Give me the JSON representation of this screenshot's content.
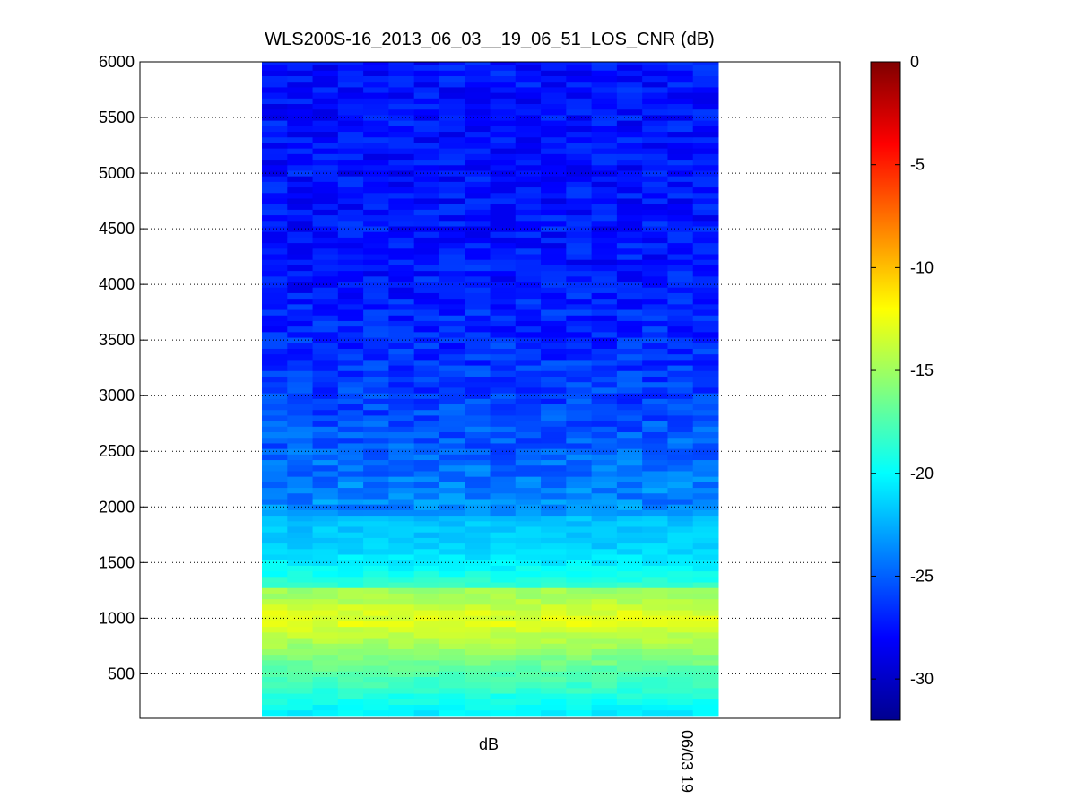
{
  "chart_data": {
    "type": "heatmap",
    "title": "WLS200S-16_2013_06_03__19_06_51_LOS_CNR (dB)",
    "xlabel": "dB",
    "ylabel": "",
    "x_tick_labels": [
      "06/03 19"
    ],
    "yticks": [
      500,
      1000,
      1500,
      2000,
      2500,
      3000,
      3500,
      4000,
      4500,
      5000,
      5500,
      6000
    ],
    "ylim": [
      100,
      6000
    ],
    "grid": true,
    "colormap": "jet",
    "colorbar": {
      "range": [
        -32,
        0
      ],
      "ticks": [
        0,
        -5,
        -10,
        -15,
        -20,
        -25,
        -30
      ]
    },
    "columns": 18,
    "rows_y_range": [
      150,
      6000
    ],
    "row_step": 50,
    "profile": [
      {
        "y": 150,
        "cnr": -20.5
      },
      {
        "y": 250,
        "cnr": -19.5
      },
      {
        "y": 350,
        "cnr": -18.5
      },
      {
        "y": 500,
        "cnr": -17.5
      },
      {
        "y": 650,
        "cnr": -16.0
      },
      {
        "y": 800,
        "cnr": -14.5
      },
      {
        "y": 950,
        "cnr": -13.0
      },
      {
        "y": 1050,
        "cnr": -13.2
      },
      {
        "y": 1150,
        "cnr": -14.3
      },
      {
        "y": 1250,
        "cnr": -15.0
      },
      {
        "y": 1300,
        "cnr": -18.5
      },
      {
        "y": 1450,
        "cnr": -20.0
      },
      {
        "y": 1650,
        "cnr": -21.5
      },
      {
        "y": 1900,
        "cnr": -22.0
      },
      {
        "y": 1950,
        "cnr": -23.5
      },
      {
        "y": 2200,
        "cnr": -24.0
      },
      {
        "y": 2500,
        "cnr": -25.0
      },
      {
        "y": 3000,
        "cnr": -26.0
      },
      {
        "y": 4000,
        "cnr": -27.3
      },
      {
        "y": 5000,
        "cnr": -27.5
      },
      {
        "y": 6000,
        "cnr": -27.5
      }
    ],
    "noise_amplitude_db": 1.4
  }
}
